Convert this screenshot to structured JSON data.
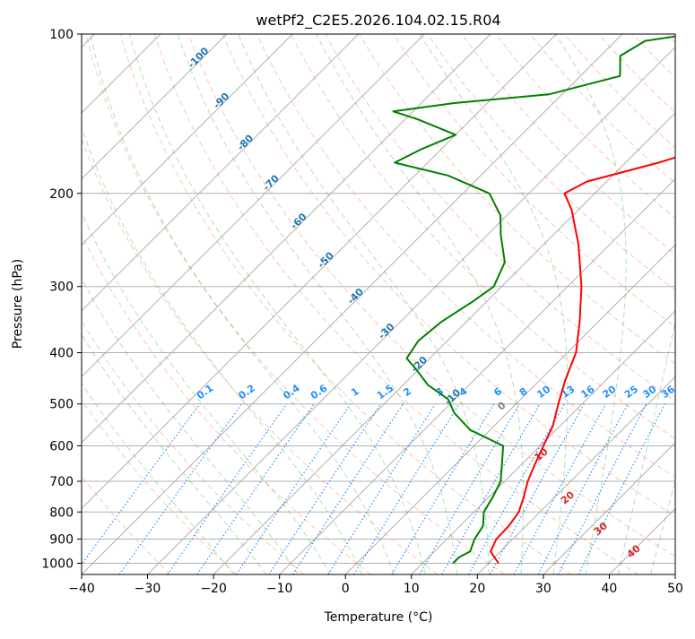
{
  "chart_data": {
    "type": "line",
    "chart_kind": "skew-T log-P diagram",
    "title": "wetPf2_C2E5.2026.104.02.15.R04",
    "xlabel": "Temperature (°C)",
    "ylabel": "Pressure (hPa)",
    "xlim": [
      -40,
      50
    ],
    "ylim": [
      1050,
      100
    ],
    "y_scale": "log",
    "grid": true,
    "x_ticks": [
      -40,
      -30,
      -20,
      -10,
      0,
      10,
      20,
      30,
      40,
      50
    ],
    "y_ticks": [
      100,
      200,
      300,
      400,
      500,
      600,
      700,
      800,
      900,
      1000
    ],
    "skewed_isotherm_labels": [
      -100,
      -90,
      -80,
      -70,
      -60,
      -50,
      -40,
      -30,
      -20,
      -10
    ],
    "mixing_ratio_labels": [
      "0.1",
      "0.2",
      "0.4",
      "0.6",
      "1",
      "1.5",
      "2",
      "3",
      "4",
      "6",
      "8",
      "10",
      "13",
      "16",
      "20",
      "25",
      "30",
      "36"
    ],
    "moist_adiabat_labels": [
      "0",
      "10",
      "20",
      "30",
      "40"
    ],
    "colors": {
      "temperature": "#ff0000",
      "dewpoint": "#008000",
      "isotherm_label": "#1f77b4",
      "mixing_ratio": "#1e90ff",
      "dry_adiabat": "#ff7f50",
      "moist_adiabat": "#2ca02c",
      "moist_label": "#d62728",
      "grid": "#b0b0b0"
    },
    "series": [
      {
        "key": "temperature",
        "points": [
          [
            1000,
            21.5
          ],
          [
            950,
            18.5
          ],
          [
            900,
            17.5
          ],
          [
            850,
            17.4
          ],
          [
            800,
            16.8
          ],
          [
            750,
            15.3
          ],
          [
            700,
            13.5
          ],
          [
            650,
            12.0
          ],
          [
            600,
            10.5
          ],
          [
            550,
            8.9
          ],
          [
            500,
            6.4
          ],
          [
            450,
            3.8
          ],
          [
            400,
            1.3
          ],
          [
            350,
            -2.8
          ],
          [
            300,
            -7.9
          ],
          [
            250,
            -14.7
          ],
          [
            215,
            -21.0
          ],
          [
            200,
            -24.6
          ],
          [
            190,
            -23.0
          ],
          [
            175,
            -15.0
          ],
          [
            160,
            -8.0
          ],
          [
            140,
            -1.2
          ],
          [
            125,
            4.4
          ],
          [
            110,
            8.5
          ],
          [
            100,
            11.2
          ]
        ]
      },
      {
        "key": "dewpoint",
        "points": [
          [
            1000,
            14.6
          ],
          [
            975,
            14.6
          ],
          [
            950,
            15.4
          ],
          [
            900,
            14.2
          ],
          [
            850,
            13.5
          ],
          [
            800,
            11.5
          ],
          [
            750,
            10.6
          ],
          [
            700,
            9.4
          ],
          [
            650,
            7.0
          ],
          [
            600,
            4.4
          ],
          [
            560,
            -3.0
          ],
          [
            520,
            -8.0
          ],
          [
            490,
            -11.0
          ],
          [
            460,
            -16.3
          ],
          [
            430,
            -20.4
          ],
          [
            410,
            -23.5
          ],
          [
            380,
            -24.4
          ],
          [
            350,
            -23.8
          ],
          [
            320,
            -22.1
          ],
          [
            300,
            -21.2
          ],
          [
            270,
            -23.2
          ],
          [
            240,
            -27.9
          ],
          [
            220,
            -31.0
          ],
          [
            200,
            -36.0
          ],
          [
            185,
            -45.0
          ],
          [
            175,
            -55.0
          ],
          [
            165,
            -53.0
          ],
          [
            155,
            -50.0
          ],
          [
            145,
            -58.0
          ],
          [
            140,
            -63.0
          ],
          [
            135,
            -55.0
          ],
          [
            130,
            -42.0
          ],
          [
            120,
            -34.0
          ],
          [
            110,
            -37.0
          ],
          [
            103,
            -35.5
          ],
          [
            100,
            -29.5
          ]
        ]
      }
    ]
  }
}
